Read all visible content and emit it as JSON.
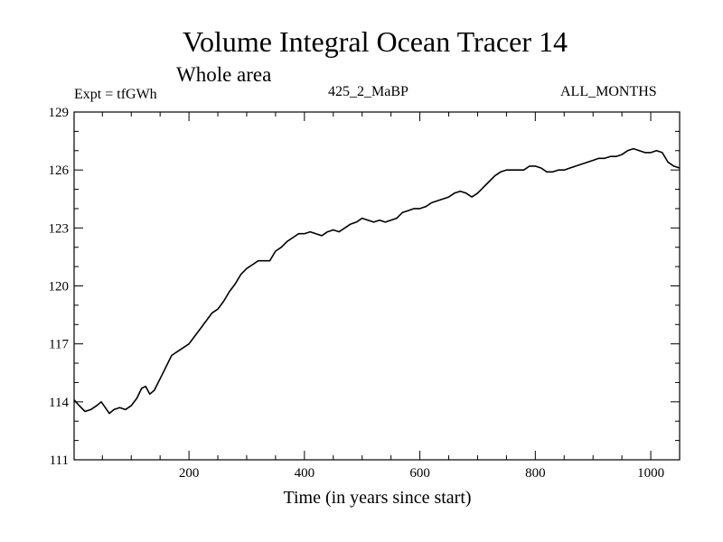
{
  "chart_data": {
    "type": "line",
    "title": "Volume Integral Ocean Tracer 14",
    "subtitle": "Whole area",
    "annotations": {
      "left": "Expt = tfGWh",
      "center": "425_2_MaBP",
      "right": "ALL_MONTHS"
    },
    "xlabel": "Time (in years since start)",
    "ylabel": "",
    "xlim": [
      1,
      1050
    ],
    "ylim": [
      111,
      129
    ],
    "xticks": [
      200,
      400,
      600,
      800,
      1000
    ],
    "yticks": [
      111,
      114,
      117,
      120,
      123,
      126,
      129
    ],
    "series": [
      {
        "name": "Volume Integral Ocean Tracer 14",
        "color": "#000000",
        "x": [
          1,
          10,
          20,
          30,
          40,
          48,
          55,
          62,
          70,
          80,
          90,
          100,
          110,
          118,
          125,
          132,
          140,
          150,
          160,
          170,
          180,
          190,
          200,
          210,
          220,
          230,
          240,
          250,
          260,
          270,
          280,
          290,
          300,
          310,
          320,
          330,
          340,
          350,
          360,
          370,
          380,
          390,
          400,
          410,
          420,
          430,
          440,
          450,
          460,
          470,
          480,
          490,
          500,
          510,
          520,
          530,
          540,
          550,
          560,
          570,
          580,
          590,
          600,
          610,
          620,
          630,
          640,
          650,
          660,
          670,
          680,
          690,
          700,
          710,
          720,
          730,
          740,
          750,
          760,
          770,
          780,
          790,
          800,
          810,
          820,
          830,
          840,
          850,
          860,
          870,
          880,
          890,
          900,
          910,
          920,
          930,
          940,
          950,
          960,
          970,
          980,
          990,
          1000,
          1010,
          1020,
          1030,
          1040,
          1050
        ],
        "values": [
          114.1,
          113.8,
          113.5,
          113.6,
          113.8,
          114.0,
          113.7,
          113.4,
          113.6,
          113.7,
          113.6,
          113.8,
          114.2,
          114.7,
          114.8,
          114.4,
          114.6,
          115.2,
          115.8,
          116.4,
          116.6,
          116.8,
          117.0,
          117.4,
          117.8,
          118.2,
          118.6,
          118.8,
          119.2,
          119.7,
          120.1,
          120.6,
          120.9,
          121.1,
          121.3,
          121.3,
          121.3,
          121.8,
          122.0,
          122.3,
          122.5,
          122.7,
          122.7,
          122.8,
          122.7,
          122.6,
          122.8,
          122.9,
          122.8,
          123.0,
          123.2,
          123.3,
          123.5,
          123.4,
          123.3,
          123.4,
          123.3,
          123.4,
          123.5,
          123.8,
          123.9,
          124.0,
          124.0,
          124.1,
          124.3,
          124.4,
          124.5,
          124.6,
          124.8,
          124.9,
          124.8,
          124.6,
          124.8,
          125.1,
          125.4,
          125.7,
          125.9,
          126.0,
          126.0,
          126.0,
          126.0,
          126.2,
          126.2,
          126.1,
          125.9,
          125.9,
          126.0,
          126.0,
          126.1,
          126.2,
          126.3,
          126.4,
          126.5,
          126.6,
          126.6,
          126.7,
          126.7,
          126.8,
          127.0,
          127.1,
          127.0,
          126.9,
          126.9,
          127.0,
          126.9,
          126.4,
          126.2,
          126.1
        ]
      }
    ],
    "grid": false,
    "legend": "none"
  }
}
